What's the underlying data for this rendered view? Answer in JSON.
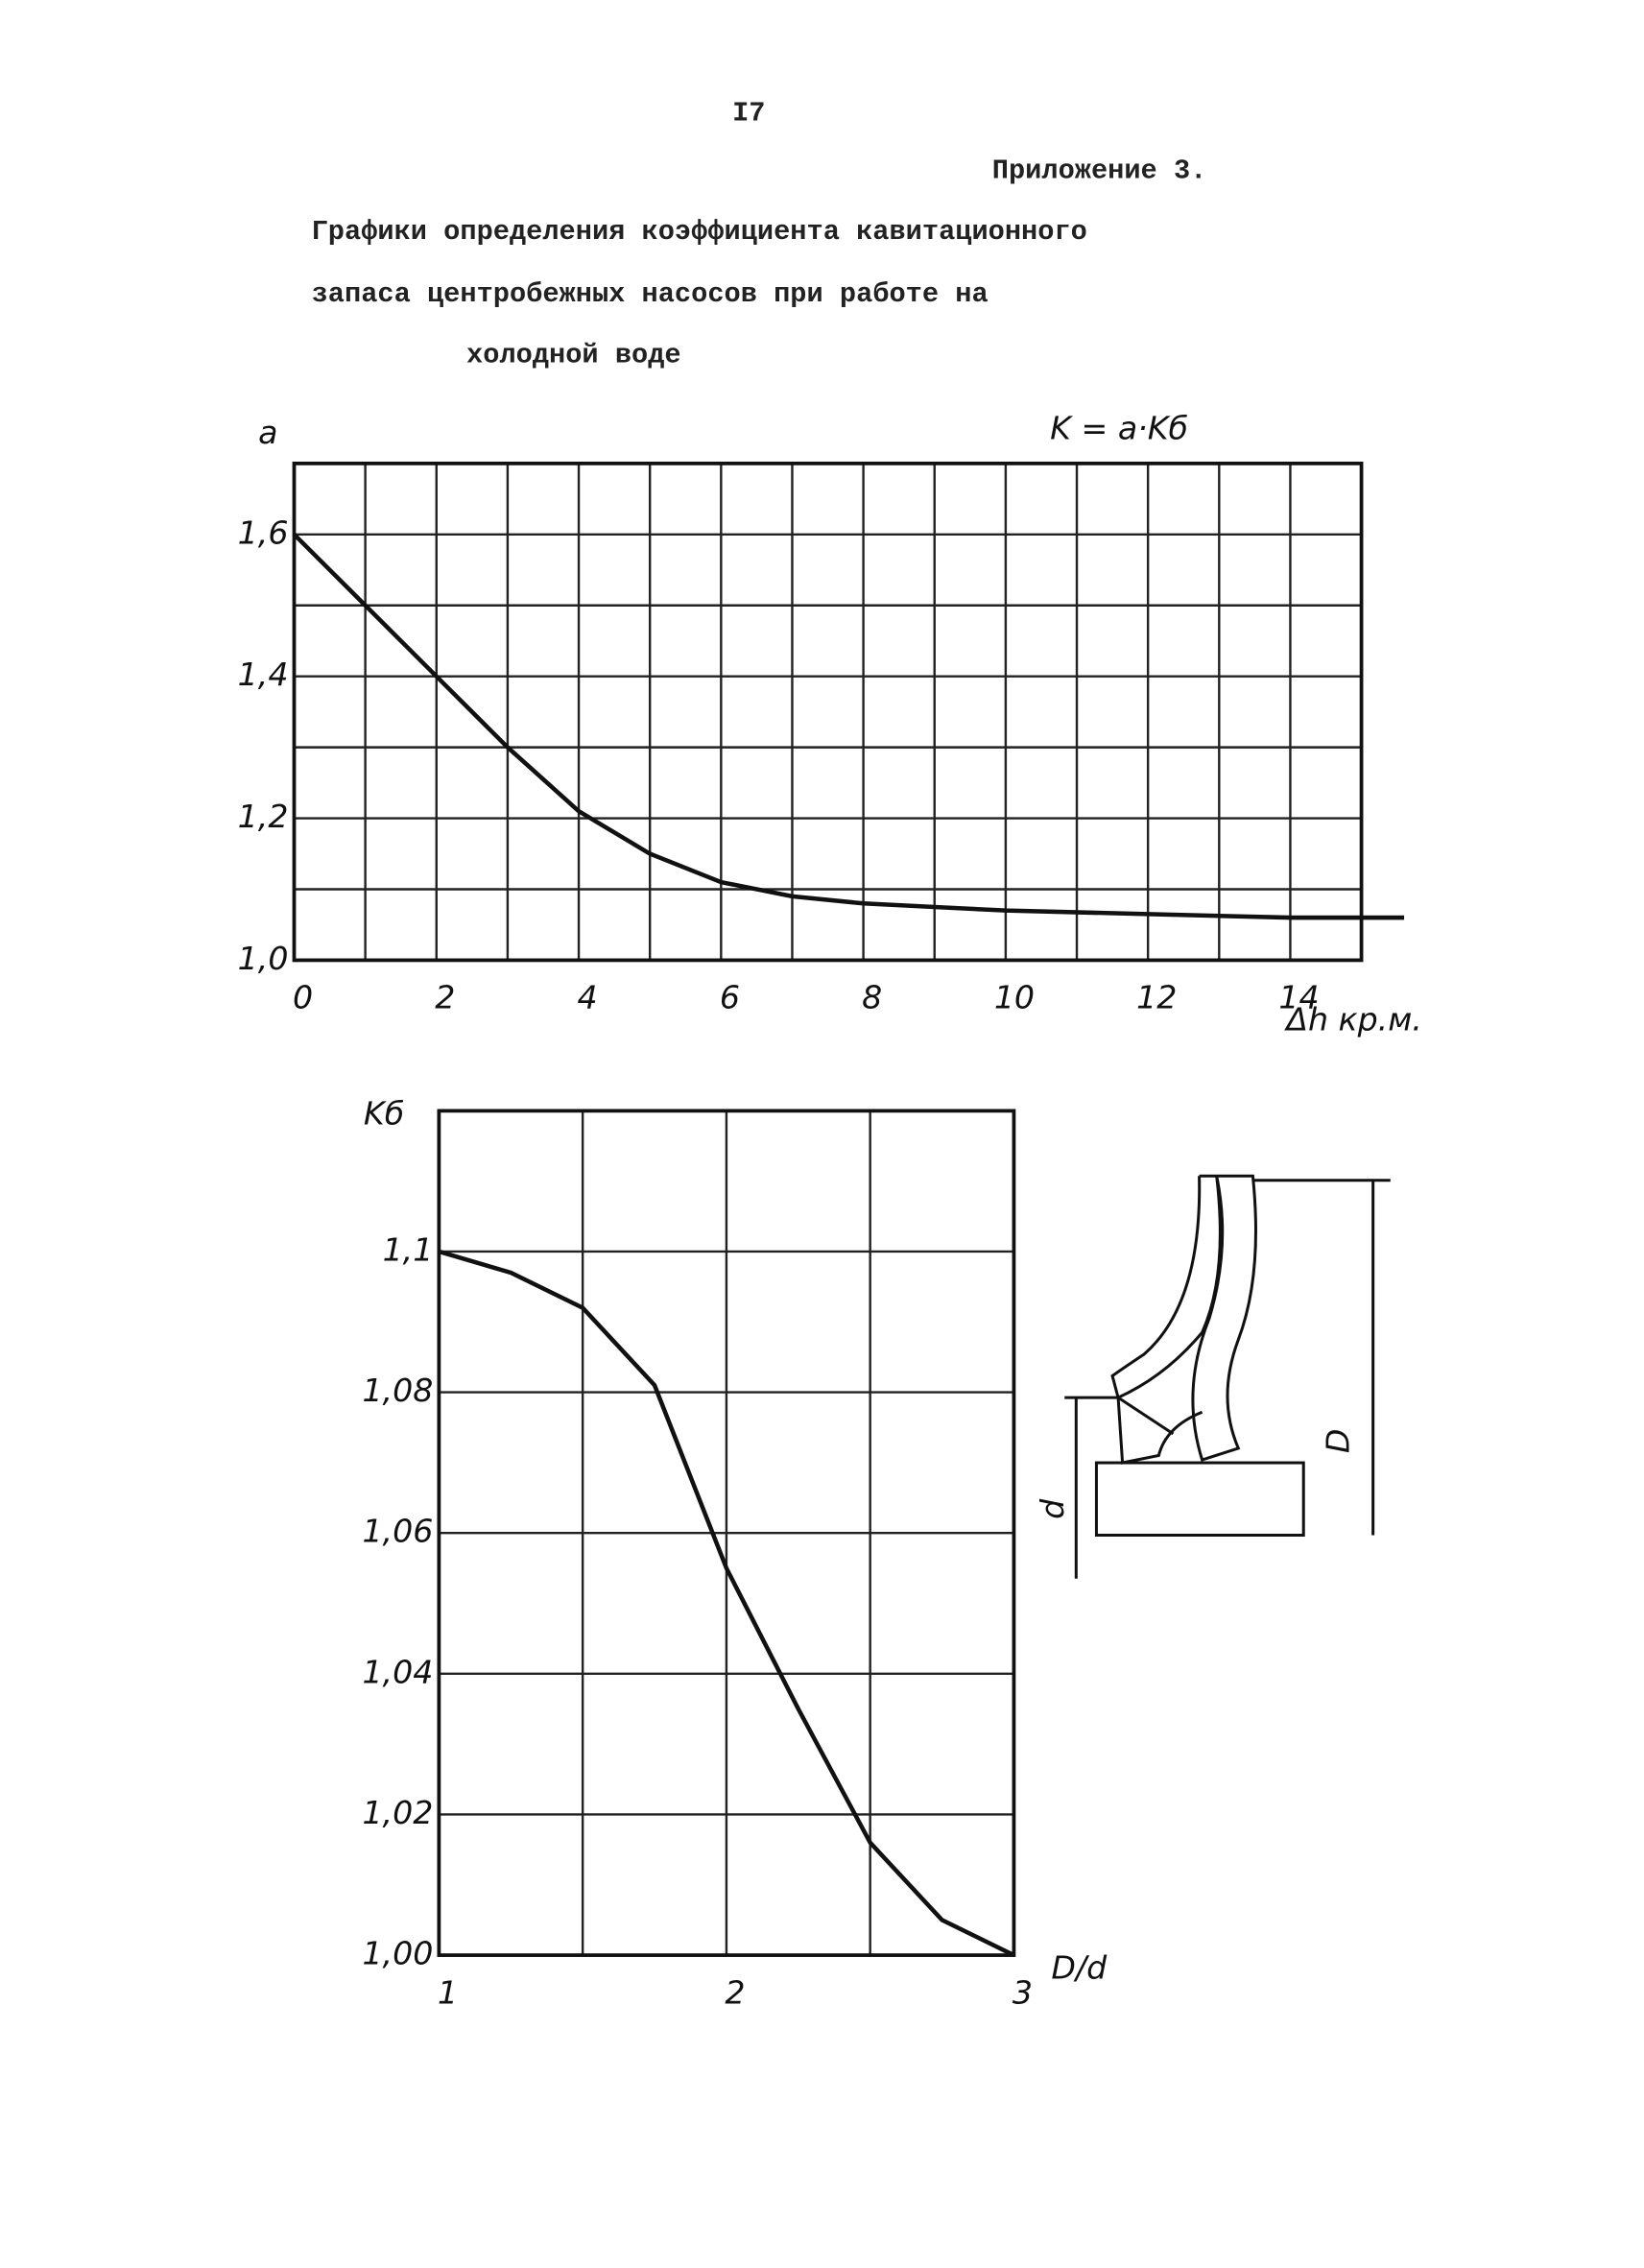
{
  "header": {
    "page_number": "I7",
    "appendix": "Приложение 3.",
    "title_lines": [
      "Графики определения коэффициента кавитационного",
      "запаса центробежных насосов при работе на",
      "холодной воде"
    ]
  },
  "chart_data": [
    {
      "type": "line",
      "annotation": "K = a·Kб",
      "y_label": "a",
      "x_label": "Δh кр.м.",
      "x": [
        0,
        1,
        2,
        3,
        4,
        5,
        6,
        7,
        8,
        9,
        10,
        12,
        14,
        15.6
      ],
      "values": [
        1.6,
        1.5,
        1.4,
        1.3,
        1.21,
        1.15,
        1.11,
        1.09,
        1.08,
        1.075,
        1.07,
        1.065,
        1.06,
        1.06
      ],
      "color": "#111111",
      "xlim": [
        0,
        15
      ],
      "ylim": [
        1.0,
        1.7
      ],
      "xticks": [
        0,
        2,
        4,
        6,
        8,
        10,
        12,
        14
      ],
      "yticks": [
        {
          "value": 1.0,
          "label": "1,0"
        },
        {
          "value": 1.2,
          "label": "1,2"
        },
        {
          "value": 1.4,
          "label": "1,4"
        },
        {
          "value": 1.6,
          "label": "1,6"
        }
      ],
      "xgrid": [
        1,
        3,
        5,
        7,
        9,
        11,
        13
      ],
      "ygrid": [
        1.1,
        1.3,
        1.5
      ],
      "grid": true
    },
    {
      "type": "line",
      "y_label": "Kб",
      "x_label": "D/d",
      "x": [
        1,
        1.25,
        1.5,
        1.75,
        2,
        2.25,
        2.5,
        2.75,
        3
      ],
      "values": [
        1.1,
        1.097,
        1.092,
        1.081,
        1.055,
        1.035,
        1.016,
        1.005,
        1.0
      ],
      "color": "#111111",
      "xlim": [
        1,
        3
      ],
      "ylim": [
        1.0,
        1.12
      ],
      "xticks": [
        1,
        2,
        3
      ],
      "yticks": [
        {
          "value": 1.0,
          "label": "1,00"
        },
        {
          "value": 1.02,
          "label": "1,02"
        },
        {
          "value": 1.04,
          "label": "1,04"
        },
        {
          "value": 1.06,
          "label": "1,06"
        },
        {
          "value": 1.08,
          "label": "1,08"
        },
        {
          "value": 1.1,
          "label": "1,1"
        }
      ],
      "xgrid": [
        1.5,
        2.5
      ],
      "ygrid": [],
      "grid": true
    }
  ],
  "diagram": {
    "labels": [
      "D",
      "d"
    ]
  }
}
